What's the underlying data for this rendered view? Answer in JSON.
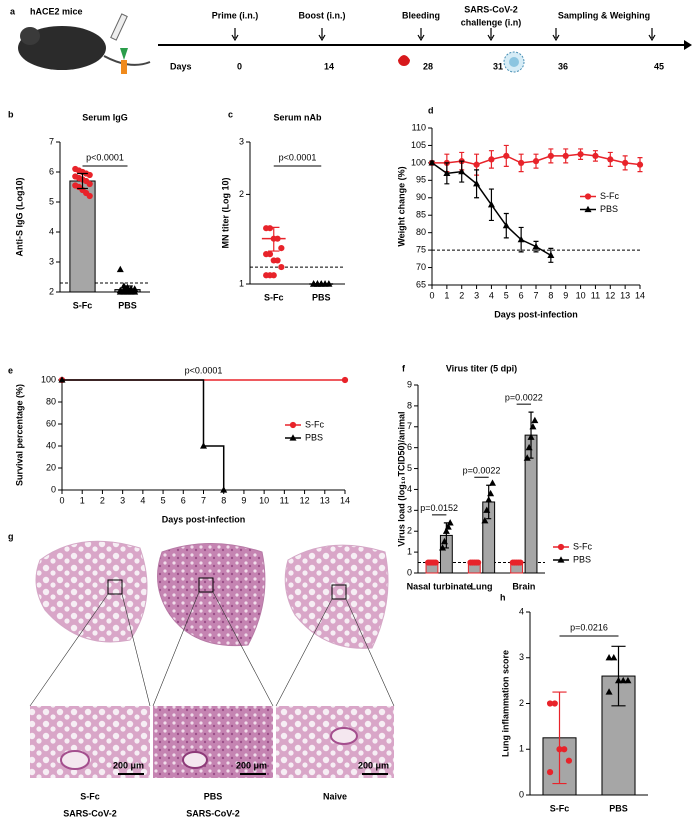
{
  "timeline": {
    "panel": "a",
    "subject": "hACE2 mice",
    "days_label": "Days",
    "events": [
      {
        "label": "Prime (i.n.)",
        "day": 0
      },
      {
        "label": "Boost (i.n.)",
        "day": 14
      },
      {
        "label": "Bleeding",
        "day": 28
      },
      {
        "label_lines": [
          "SARS-CoV-2",
          "challenge (i.n)"
        ],
        "day": 31
      },
      {
        "day": 36
      },
      {
        "day": 45
      }
    ],
    "span_label": "Sampling & Weighing"
  },
  "chart_data": [
    {
      "panel": "b",
      "type": "dot_bar",
      "title": "Serum IgG",
      "ylabel": "Anti-S IgG (Log10)",
      "categories": [
        "S-Fc",
        "PBS"
      ],
      "values": [
        5.7,
        2.08
      ],
      "errors": [
        0.25,
        0.12
      ],
      "points": [
        [
          6.1,
          6.05,
          6.0,
          5.95,
          5.9,
          5.85,
          5.8,
          5.75,
          5.7,
          5.6,
          5.55,
          5.5,
          5.4,
          5.3,
          5.2
        ],
        [
          2.75,
          2.2,
          2.15,
          2.1,
          2.1,
          2.05,
          2.05,
          2.05,
          2.05,
          2.0,
          2.0,
          2.0,
          2.0,
          2.0
        ]
      ],
      "colors": [
        "#e8232a",
        "#000000"
      ],
      "markers": [
        "circle",
        "triangle"
      ],
      "bar_color": "#a6a6a6",
      "ylim": [
        2,
        7
      ],
      "yticks": [
        2,
        3,
        4,
        5,
        6,
        7
      ],
      "threshold": 2.3,
      "p_value": "p<0.0001"
    },
    {
      "panel": "c",
      "type": "dot_bar",
      "title": "Serum nAb",
      "ylabel": "MN titer (Log 10)",
      "categories": [
        "S-Fc",
        "PBS"
      ],
      "values": [
        1.42,
        1.0
      ],
      "errors": [
        0.13,
        0
      ],
      "points": [
        [
          1.54,
          1.54,
          1.42,
          1.42,
          1.32,
          1.26,
          1.26,
          1.2,
          1.2,
          1.14,
          1.07,
          1.07,
          1.07
        ],
        [
          1,
          1,
          1,
          1,
          1,
          1,
          1,
          1,
          1,
          1,
          1,
          1,
          1
        ]
      ],
      "colors": [
        "#e8232a",
        "#000000"
      ],
      "error_colors": [
        "#e8232a",
        "#000000"
      ],
      "markers": [
        "circle",
        "triangle"
      ],
      "bar_color": null,
      "log_y": true,
      "ylim": [
        1,
        3
      ],
      "yticks": [
        1,
        2,
        3
      ],
      "threshold": 1.14,
      "p_value": "p<0.0001"
    },
    {
      "panel": "d",
      "type": "line",
      "ylabel": "Weight change (%)",
      "xlabel": "Days post-infection",
      "x": [
        0,
        1,
        2,
        3,
        4,
        5,
        6,
        7,
        8,
        9,
        10,
        11,
        12,
        13,
        14
      ],
      "series": [
        {
          "name": "S-Fc",
          "color": "#e8232a",
          "marker": "circle",
          "values": [
            100,
            100,
            100.5,
            99.5,
            101,
            102,
            100,
            100.5,
            102,
            102,
            102.5,
            102,
            101,
            100,
            99.5
          ],
          "errors": [
            0.5,
            2.5,
            2.5,
            3,
            2.5,
            3,
            2.5,
            2,
            2,
            2,
            1.5,
            1.5,
            2,
            2,
            2
          ]
        },
        {
          "name": "PBS",
          "color": "#000000",
          "marker": "triangle",
          "values": [
            100,
            97,
            97.5,
            94,
            88,
            82,
            78,
            76,
            73.5,
            null,
            null,
            null,
            null,
            null,
            null
          ],
          "errors": [
            0.5,
            3,
            3,
            4,
            4.5,
            3.5,
            3.5,
            1.5,
            2,
            null,
            null,
            null,
            null,
            null,
            null
          ]
        }
      ],
      "xlim": [
        0,
        14
      ],
      "xticks": [
        0,
        1,
        2,
        3,
        4,
        5,
        6,
        7,
        8,
        9,
        10,
        11,
        12,
        13,
        14
      ],
      "ylim": [
        65,
        110
      ],
      "yticks": [
        65,
        70,
        75,
        80,
        85,
        90,
        95,
        100,
        105,
        110
      ],
      "threshold": 75,
      "legend": "right"
    },
    {
      "panel": "e",
      "type": "step",
      "ylabel": "Survival percentage (%)",
      "xlabel": "Days post-infection",
      "series": [
        {
          "name": "S-Fc",
          "color": "#e8232a",
          "marker": "circle",
          "x": [
            0,
            14
          ],
          "values": [
            100,
            100
          ]
        },
        {
          "name": "PBS",
          "color": "#000000",
          "marker": "triangle",
          "x": [
            0,
            7,
            8
          ],
          "values": [
            100,
            40,
            0
          ]
        }
      ],
      "xlim": [
        0,
        14
      ],
      "xticks": [
        0,
        1,
        2,
        3,
        4,
        5,
        6,
        7,
        8,
        9,
        10,
        11,
        12,
        13,
        14
      ],
      "ylim": [
        0,
        100
      ],
      "yticks": [
        0,
        20,
        40,
        60,
        80,
        100
      ],
      "p_value": "p<0.0001",
      "legend": "right"
    },
    {
      "panel": "f",
      "type": "grouped_bar",
      "title": "Virus titer (5 dpi)",
      "ylabel": "Virus load (log₁₀TCID50)/animal",
      "categories": [
        "Nasal turbinate",
        "Lung",
        "Brain"
      ],
      "series": [
        {
          "name": "S-Fc",
          "color": "#e8232a",
          "marker": "circle",
          "values": [
            0.5,
            0.5,
            0.5
          ],
          "points": [
            [
              0.5,
              0.5,
              0.5,
              0.5,
              0.5
            ],
            [
              0.5,
              0.5,
              0.5,
              0.5,
              0.5
            ],
            [
              0.5,
              0.5,
              0.5,
              0.5,
              0.5
            ]
          ]
        },
        {
          "name": "PBS",
          "color": "#000000",
          "marker": "triangle",
          "values": [
            1.8,
            3.4,
            6.6
          ],
          "errors": [
            0.6,
            0.8,
            1.1
          ],
          "points": [
            [
              1.2,
              1.5,
              2.0,
              2.2,
              2.4
            ],
            [
              2.5,
              3.0,
              3.5,
              3.8,
              4.3
            ],
            [
              5.5,
              6.0,
              6.5,
              7.0,
              7.3
            ]
          ]
        }
      ],
      "bar_color": "#a6a6a6",
      "ylim": [
        0,
        9
      ],
      "yticks": [
        0,
        1,
        2,
        3,
        4,
        5,
        6,
        7,
        8,
        9
      ],
      "threshold": 0.5,
      "p_values": [
        "p=0.0152",
        "p=0.0022",
        "p=0.0022"
      ],
      "legend": "outside lower right"
    },
    {
      "panel": "h",
      "type": "dot_bar",
      "ylabel": "Lung inflammation score",
      "categories": [
        "S-Fc",
        "PBS"
      ],
      "values": [
        1.25,
        2.6
      ],
      "errors": [
        1.0,
        0.65
      ],
      "points": [
        [
          2,
          2,
          1,
          1,
          0.75,
          0.5
        ],
        [
          3,
          3,
          2.5,
          2.5,
          2.5,
          2.25
        ]
      ],
      "colors": [
        "#e8232a",
        "#000000"
      ],
      "error_colors": [
        "#e8232a",
        "#000000"
      ],
      "markers": [
        "circle",
        "triangle"
      ],
      "bar_color": "#a6a6a6",
      "ylim": [
        0,
        4
      ],
      "yticks": [
        0,
        1,
        2,
        3,
        4
      ],
      "p_value": "p=0.0216"
    }
  ],
  "histology": {
    "panel": "g",
    "images": [
      {
        "lines": [
          "S-Fc",
          "SARS-CoV-2"
        ]
      },
      {
        "lines": [
          "PBS",
          "SARS-CoV-2"
        ]
      },
      {
        "lines": [
          "Naive"
        ]
      }
    ],
    "scale_bar": "200 μm"
  }
}
